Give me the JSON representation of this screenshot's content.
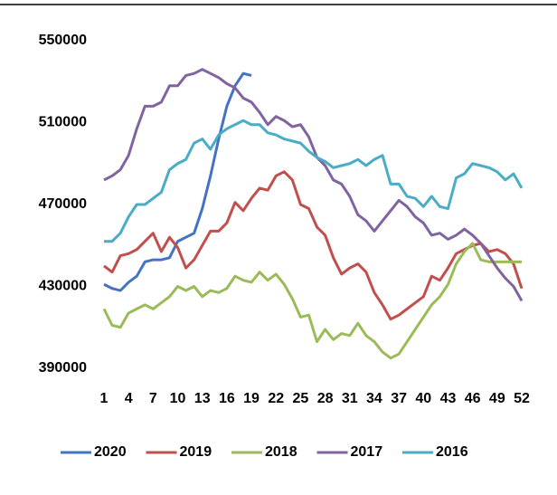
{
  "chart_data": {
    "type": "line",
    "x": [
      1,
      2,
      3,
      4,
      5,
      6,
      7,
      8,
      9,
      10,
      11,
      12,
      13,
      14,
      15,
      16,
      17,
      18,
      19,
      20,
      21,
      22,
      23,
      24,
      25,
      26,
      27,
      28,
      29,
      30,
      31,
      32,
      33,
      34,
      35,
      36,
      37,
      38,
      39,
      40,
      41,
      42,
      43,
      44,
      45,
      46,
      47,
      48,
      49,
      50,
      51,
      52
    ],
    "xlim": [
      1,
      52
    ],
    "xticks": [
      1,
      4,
      7,
      10,
      13,
      16,
      19,
      22,
      25,
      28,
      31,
      34,
      37,
      40,
      43,
      46,
      49,
      52
    ],
    "ylim": [
      390000,
      550000
    ],
    "yticks": [
      390000,
      430000,
      470000,
      510000,
      550000
    ],
    "grid": false,
    "legend": "bottom",
    "series": [
      {
        "name": "2020",
        "color": "#4472c4",
        "values": [
          431000,
          429000,
          428000,
          432000,
          435000,
          442000,
          443000,
          443000,
          444000,
          452000,
          454000,
          456000,
          468000,
          484000,
          502000,
          518000,
          528000,
          534000,
          533000,
          null,
          null,
          null,
          null,
          null,
          null,
          null,
          null,
          null,
          null,
          null,
          null,
          null,
          null,
          null,
          null,
          null,
          null,
          null,
          null,
          null,
          null,
          null,
          null,
          null,
          null,
          null,
          null,
          null,
          null,
          null,
          null,
          null
        ]
      },
      {
        "name": "2019",
        "color": "#c0504d",
        "values": [
          440000,
          437000,
          445000,
          446000,
          448000,
          452000,
          456000,
          447000,
          454000,
          449000,
          439000,
          443000,
          450000,
          457000,
          457000,
          461000,
          471000,
          467000,
          473000,
          478000,
          477000,
          484000,
          486000,
          482000,
          470000,
          468000,
          459000,
          455000,
          444000,
          436000,
          439000,
          441000,
          437000,
          427000,
          421000,
          414000,
          416000,
          419000,
          422000,
          425000,
          435000,
          433000,
          439000,
          446000,
          448000,
          450000,
          451000,
          447000,
          448000,
          446000,
          441000,
          429000
        ]
      },
      {
        "name": "2018",
        "color": "#9bbb59",
        "values": [
          419000,
          411000,
          410000,
          417000,
          419000,
          421000,
          419000,
          422000,
          425000,
          430000,
          428000,
          430000,
          425000,
          428000,
          427000,
          429000,
          435000,
          433000,
          432000,
          437000,
          433000,
          436000,
          431000,
          424000,
          415000,
          416000,
          403000,
          409000,
          404000,
          407000,
          406000,
          412000,
          406000,
          403000,
          398000,
          395000,
          397000,
          403000,
          409000,
          415000,
          421000,
          425000,
          431000,
          441000,
          447000,
          451000,
          443000,
          442000,
          442000,
          442000,
          442000,
          442000
        ]
      },
      {
        "name": "2017",
        "color": "#8064a2",
        "values": [
          482000,
          484000,
          487000,
          494000,
          507000,
          518000,
          518000,
          520000,
          528000,
          528000,
          533000,
          534000,
          536000,
          534000,
          532000,
          529000,
          527000,
          522000,
          520000,
          515000,
          509000,
          513000,
          511000,
          508000,
          509000,
          503000,
          493000,
          489000,
          482000,
          480000,
          474000,
          465000,
          462000,
          457000,
          462000,
          467000,
          472000,
          469000,
          464000,
          461000,
          455000,
          456000,
          453000,
          455000,
          458000,
          455000,
          451000,
          445000,
          439000,
          434000,
          430000,
          423000
        ]
      },
      {
        "name": "2016",
        "color": "#4bacc6",
        "values": [
          452000,
          452000,
          456000,
          464000,
          470000,
          470000,
          473000,
          476000,
          487000,
          490000,
          492000,
          500000,
          502000,
          497000,
          504000,
          507000,
          509000,
          511000,
          509000,
          509000,
          505000,
          504000,
          502000,
          501000,
          500000,
          496000,
          493000,
          491000,
          488000,
          489000,
          490000,
          492000,
          489000,
          492000,
          494000,
          480000,
          480000,
          474000,
          473000,
          469000,
          474000,
          469000,
          468000,
          483000,
          485000,
          490000,
          489000,
          488000,
          486000,
          482000,
          485000,
          478000
        ]
      }
    ]
  }
}
